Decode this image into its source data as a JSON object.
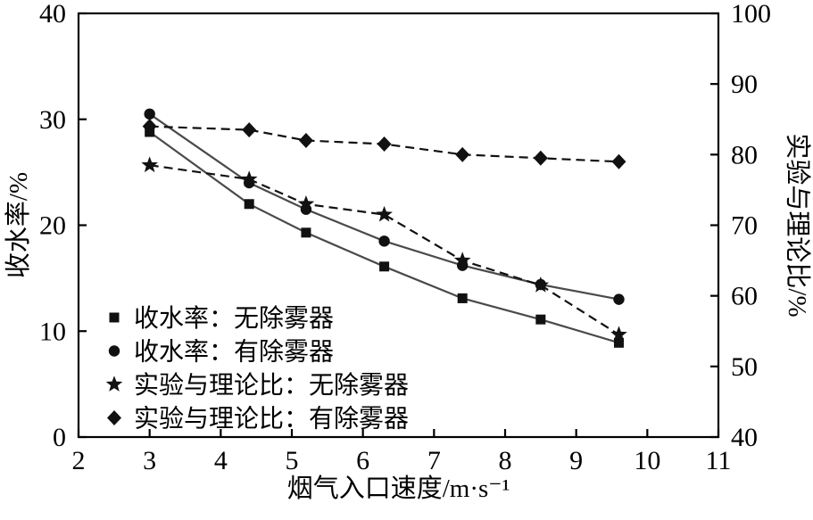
{
  "chart_data": {
    "type": "line",
    "title": "",
    "xlabel": "烟气入口速度/m·s⁻¹",
    "ylabel_left": "收水率/%",
    "ylabel_right": "实验与理论比/%",
    "xlim": [
      2,
      11
    ],
    "ylim_left": [
      0,
      40
    ],
    "ylim_right": [
      40,
      100
    ],
    "xticks": [
      2,
      3,
      4,
      5,
      6,
      7,
      8,
      9,
      10,
      11
    ],
    "yticks_left": [
      0,
      10,
      20,
      30,
      40
    ],
    "yticks_right": [
      40,
      50,
      60,
      70,
      80,
      90,
      100
    ],
    "grid": false,
    "legend_position": "lower-left",
    "x": [
      3.0,
      4.4,
      5.2,
      6.3,
      7.4,
      8.5,
      9.6
    ],
    "series": [
      {
        "name": "收水率：无除雾器",
        "axis": "left",
        "marker": "square",
        "line": "solid",
        "values": [
          28.8,
          22.0,
          19.3,
          16.1,
          13.1,
          11.1,
          8.9
        ]
      },
      {
        "name": "收水率：有除雾器",
        "axis": "left",
        "marker": "circle",
        "line": "solid",
        "values": [
          30.5,
          24.0,
          21.5,
          18.5,
          16.2,
          14.4,
          13.0
        ]
      },
      {
        "name": "实验与理论比：无除雾器",
        "axis": "right",
        "marker": "star",
        "line": "dashed",
        "values": [
          78.5,
          76.5,
          73.0,
          71.5,
          65.0,
          61.5,
          54.5
        ]
      },
      {
        "name": "实验与理论比：有除雾器",
        "axis": "right",
        "marker": "diamond",
        "line": "dashed",
        "values": [
          84.0,
          83.5,
          82.0,
          81.5,
          80.0,
          79.5,
          79.0
        ]
      }
    ],
    "colors": {
      "axis": "#000000",
      "line_solid": "#4a4a4a",
      "line_dashed": "#111111",
      "marker": "#111111",
      "text": "#000000"
    }
  }
}
